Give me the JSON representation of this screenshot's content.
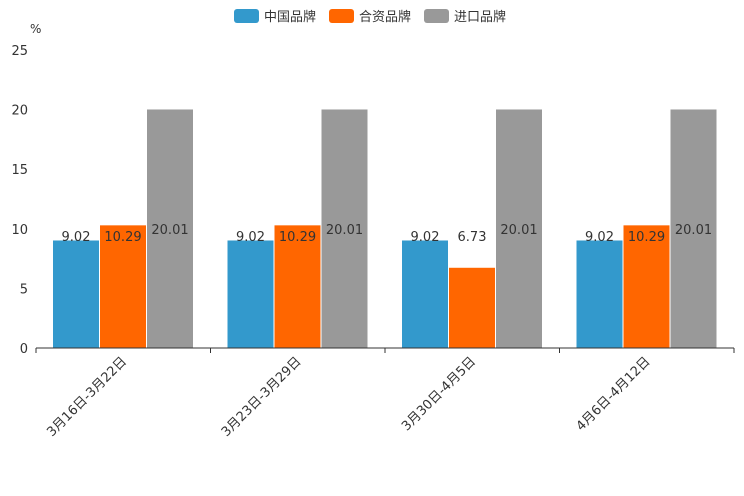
{
  "chart_data": {
    "type": "bar",
    "y_unit": "%",
    "ylim": [
      0,
      25
    ],
    "y_ticks": [
      0,
      5,
      10,
      15,
      20,
      25
    ],
    "categories": [
      "3月16日-3月22日",
      "3月23日-3月29日",
      "3月30日-4月5日",
      "4月6日-4月12日"
    ],
    "series": [
      {
        "name": "中国品牌",
        "color": "#3399CC",
        "values": [
          9.02,
          9.02,
          9.02,
          9.02
        ]
      },
      {
        "name": "合资品牌",
        "color": "#FF6600",
        "values": [
          10.29,
          10.29,
          6.73,
          10.29
        ]
      },
      {
        "name": "进口品牌",
        "color": "#999999",
        "values": [
          20.01,
          20.01,
          20.01,
          20.01
        ]
      }
    ],
    "grid": false,
    "legend_position": "top-center"
  }
}
